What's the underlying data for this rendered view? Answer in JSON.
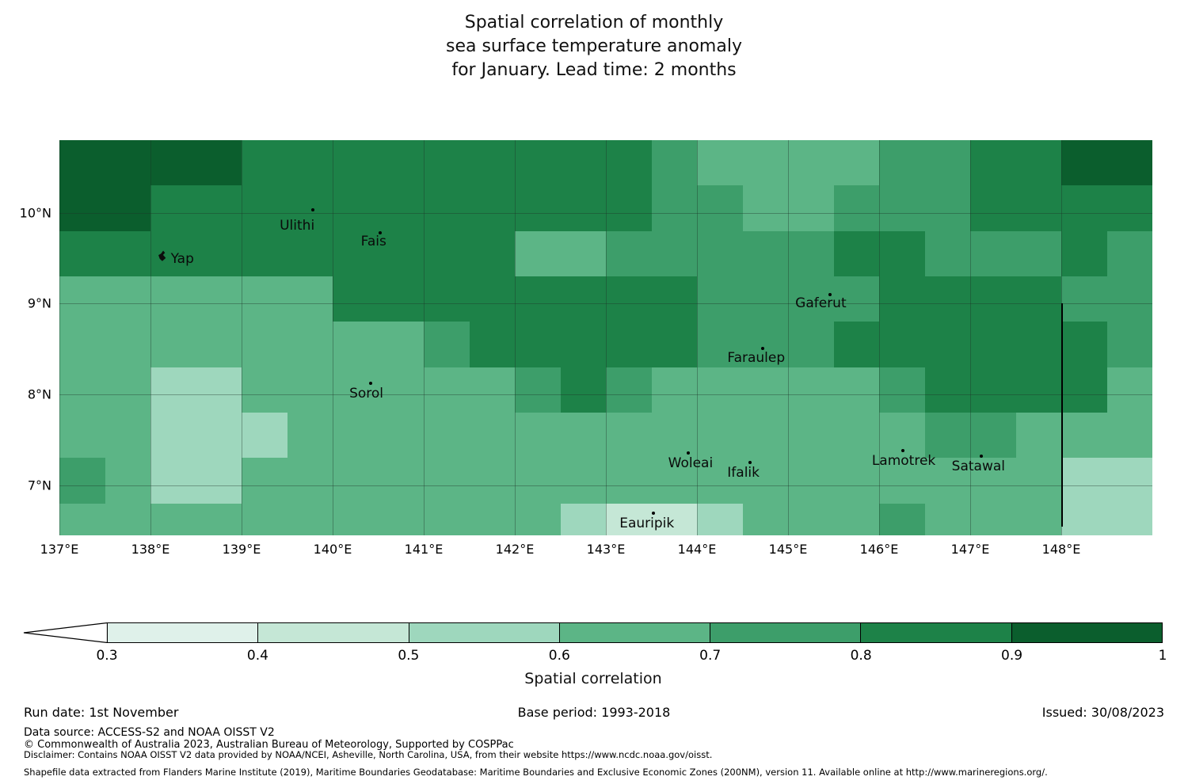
{
  "title": {
    "line1": "Spatial correlation of monthly",
    "line2": "sea surface temperature anomaly",
    "line3": "for January. Lead time: 2 months"
  },
  "footer": {
    "run_date": "Run date: 1st November",
    "base_period": "Base period: 1993-2018",
    "issued": "Issued: 30/08/2023",
    "data_source": "Data source: ACCESS-S2 and NOAA OISST V2",
    "copyright": "© Commonwealth of Australia 2023, Australian Bureau of Meteorology, Supported by COSPPac",
    "disclaimer": "Disclaimer: Contains NOAA OISST V2 data provided by NOAA/NCEI, Asheville, North Carolina, USA, from their website https://www.ncdc.noaa.gov/oisst.",
    "shapefile": "Shapefile data extracted from Flanders Marine Institute (2019), Maritime Boundaries Geodatabase: Maritime Boundaries and Exclusive Economic Zones (200NM), version 11. Available online at http://www.marineregions.org/."
  },
  "chart_data": {
    "type": "heatmap",
    "title": "Spatial correlation of monthly sea surface temperature anomaly for January. Lead time: 2 months",
    "colorbar_label": "Spatial correlation",
    "lon_range": [
      137,
      149
    ],
    "lat_range": [
      6.45,
      10.8
    ],
    "lon_edges": [
      137,
      137.5,
      138,
      138.5,
      139,
      139.5,
      140,
      140.5,
      141,
      141.5,
      142,
      142.5,
      143,
      143.5,
      144,
      144.5,
      145,
      145.5,
      146,
      146.5,
      147,
      147.5,
      148,
      148.5,
      149
    ],
    "lat_edges": [
      10.8,
      10.3,
      9.8,
      9.3,
      8.8,
      8.3,
      7.8,
      7.3,
      6.8,
      6.45
    ],
    "values": [
      [
        0.95,
        0.95,
        0.95,
        0.95,
        0.85,
        0.85,
        0.85,
        0.85,
        0.85,
        0.85,
        0.85,
        0.85,
        0.85,
        0.75,
        0.65,
        0.65,
        0.65,
        0.65,
        0.75,
        0.75,
        0.85,
        0.85,
        0.95,
        0.95
      ],
      [
        0.95,
        0.95,
        0.85,
        0.85,
        0.85,
        0.85,
        0.85,
        0.85,
        0.85,
        0.85,
        0.85,
        0.85,
        0.85,
        0.75,
        0.75,
        0.65,
        0.65,
        0.75,
        0.75,
        0.75,
        0.85,
        0.85,
        0.85,
        0.85
      ],
      [
        0.85,
        0.85,
        0.85,
        0.85,
        0.85,
        0.85,
        0.85,
        0.85,
        0.85,
        0.85,
        0.65,
        0.65,
        0.75,
        0.75,
        0.75,
        0.75,
        0.75,
        0.85,
        0.85,
        0.75,
        0.75,
        0.75,
        0.85,
        0.75
      ],
      [
        0.65,
        0.65,
        0.65,
        0.65,
        0.65,
        0.65,
        0.85,
        0.85,
        0.85,
        0.85,
        0.85,
        0.85,
        0.85,
        0.85,
        0.75,
        0.75,
        0.75,
        0.75,
        0.85,
        0.85,
        0.85,
        0.85,
        0.75,
        0.75
      ],
      [
        0.65,
        0.65,
        0.65,
        0.65,
        0.65,
        0.65,
        0.65,
        0.65,
        0.75,
        0.85,
        0.85,
        0.85,
        0.85,
        0.85,
        0.75,
        0.75,
        0.75,
        0.85,
        0.85,
        0.85,
        0.85,
        0.85,
        0.85,
        0.75
      ],
      [
        0.65,
        0.65,
        0.55,
        0.55,
        0.65,
        0.65,
        0.65,
        0.65,
        0.65,
        0.65,
        0.75,
        0.85,
        0.75,
        0.65,
        0.65,
        0.65,
        0.65,
        0.65,
        0.75,
        0.85,
        0.85,
        0.85,
        0.85,
        0.65
      ],
      [
        0.65,
        0.65,
        0.55,
        0.55,
        0.55,
        0.65,
        0.65,
        0.65,
        0.65,
        0.65,
        0.65,
        0.65,
        0.65,
        0.65,
        0.65,
        0.65,
        0.65,
        0.65,
        0.65,
        0.75,
        0.75,
        0.65,
        0.65,
        0.65
      ],
      [
        0.75,
        0.65,
        0.55,
        0.55,
        0.65,
        0.65,
        0.65,
        0.65,
        0.65,
        0.65,
        0.65,
        0.65,
        0.65,
        0.65,
        0.65,
        0.65,
        0.65,
        0.65,
        0.65,
        0.65,
        0.65,
        0.65,
        0.55,
        0.55
      ],
      [
        0.65,
        0.65,
        0.65,
        0.65,
        0.65,
        0.65,
        0.65,
        0.65,
        0.65,
        0.65,
        0.65,
        0.55,
        0.45,
        0.45,
        0.55,
        0.65,
        0.65,
        0.65,
        0.75,
        0.65,
        0.65,
        0.65,
        0.55,
        0.55
      ]
    ],
    "x_ticks": [
      {
        "value": 137,
        "label": "137°E"
      },
      {
        "value": 138,
        "label": "138°E"
      },
      {
        "value": 139,
        "label": "139°E"
      },
      {
        "value": 140,
        "label": "140°E"
      },
      {
        "value": 141,
        "label": "141°E"
      },
      {
        "value": 142,
        "label": "142°E"
      },
      {
        "value": 143,
        "label": "143°E"
      },
      {
        "value": 144,
        "label": "144°E"
      },
      {
        "value": 145,
        "label": "145°E"
      },
      {
        "value": 146,
        "label": "146°E"
      },
      {
        "value": 147,
        "label": "147°E"
      },
      {
        "value": 148,
        "label": "148°E"
      }
    ],
    "y_ticks": [
      {
        "value": 10,
        "label": "10°N"
      },
      {
        "value": 9,
        "label": "9°N"
      },
      {
        "value": 8,
        "label": "8°N"
      },
      {
        "value": 7,
        "label": "7°N"
      }
    ],
    "gridlines": {
      "x": [
        137,
        138,
        139,
        140,
        141,
        142,
        143,
        144,
        145,
        146,
        147,
        148
      ],
      "y": [
        7,
        8,
        9,
        10
      ]
    },
    "boundary_line": {
      "lon": 148.0,
      "lat_from": 6.55,
      "lat_to": 9.0
    },
    "markers": [
      {
        "name": "yap",
        "label": "Yap",
        "label_lon": 138.35,
        "label_lat": 9.49,
        "dot_lon": 138.13,
        "dot_lat": 9.53,
        "island": true
      },
      {
        "name": "ulithi",
        "label": "Ulithi",
        "label_lon": 139.61,
        "label_lat": 9.86,
        "dot_lon": 139.78,
        "dot_lat": 10.03
      },
      {
        "name": "fais",
        "label": "Fais",
        "label_lon": 140.45,
        "label_lat": 9.68,
        "dot_lon": 140.52,
        "dot_lat": 9.78
      },
      {
        "name": "sorol",
        "label": "Sorol",
        "label_lon": 140.37,
        "label_lat": 8.01,
        "dot_lon": 140.42,
        "dot_lat": 8.12
      },
      {
        "name": "gaferut",
        "label": "Gaferut",
        "label_lon": 145.36,
        "label_lat": 9.0,
        "dot_lon": 145.46,
        "dot_lat": 9.1
      },
      {
        "name": "faraulep",
        "label": "Faraulep",
        "label_lon": 144.65,
        "label_lat": 8.4,
        "dot_lon": 144.72,
        "dot_lat": 8.51
      },
      {
        "name": "woleai",
        "label": "Woleai",
        "label_lon": 143.93,
        "label_lat": 7.24,
        "dot_lon": 143.9,
        "dot_lat": 7.36
      },
      {
        "name": "ifalik",
        "label": "Ifalik",
        "label_lon": 144.51,
        "label_lat": 7.14,
        "dot_lon": 144.58,
        "dot_lat": 7.25
      },
      {
        "name": "lamotrek",
        "label": "Lamotrek",
        "label_lon": 146.27,
        "label_lat": 7.27,
        "dot_lon": 146.26,
        "dot_lat": 7.38
      },
      {
        "name": "satawal",
        "label": "Satawal",
        "label_lon": 147.09,
        "label_lat": 7.21,
        "dot_lon": 147.12,
        "dot_lat": 7.32
      },
      {
        "name": "eauripik",
        "label": "Eauripik",
        "label_lon": 143.45,
        "label_lat": 6.58,
        "dot_lon": 143.52,
        "dot_lat": 6.69
      }
    ],
    "colorbar": {
      "ticks": [
        "0.3",
        "0.4",
        "0.5",
        "0.6",
        "0.7",
        "0.8",
        "0.9",
        "1"
      ],
      "under_color": "#ffffff",
      "bins": [
        {
          "min": 0.3,
          "max": 0.4,
          "color": "#dff1ea"
        },
        {
          "min": 0.4,
          "max": 0.5,
          "color": "#c5e7d6"
        },
        {
          "min": 0.5,
          "max": 0.6,
          "color": "#9ed7bd"
        },
        {
          "min": 0.6,
          "max": 0.7,
          "color": "#5cb586"
        },
        {
          "min": 0.7,
          "max": 0.8,
          "color": "#3d9e6a"
        },
        {
          "min": 0.8,
          "max": 0.9,
          "color": "#1d8248"
        },
        {
          "min": 0.9,
          "max": 1.0,
          "color": "#0b5e2d"
        }
      ]
    }
  }
}
